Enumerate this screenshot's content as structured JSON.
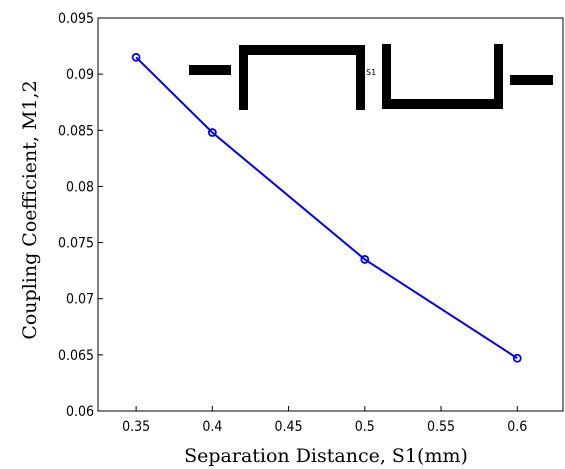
{
  "chart_data": {
    "type": "line",
    "xlabel": "Separation Distance, S1(mm)",
    "ylabel": "Coupling Coefficient, M1,2",
    "xlim": [
      0.325,
      0.63
    ],
    "ylim": [
      0.06,
      0.095
    ],
    "xticks": [
      0.35,
      0.4,
      0.45,
      0.5,
      0.55,
      0.6
    ],
    "yticks": [
      0.06,
      0.065,
      0.07,
      0.075,
      0.08,
      0.085,
      0.09,
      0.095
    ],
    "xtick_labels": [
      "0.35",
      "0.4",
      "0.45",
      "0.5",
      "0.55",
      "0.6"
    ],
    "ytick_labels": [
      "0.06",
      "0.065",
      "0.07",
      "0.075",
      "0.08",
      "0.085",
      "0.09",
      "0.095"
    ],
    "grid": false,
    "series": [
      {
        "x": [
          0.35,
          0.4,
          0.5,
          0.6
        ],
        "y": [
          0.0915,
          0.0848,
          0.0735,
          0.0647
        ],
        "color": "#0000ff",
        "marker": "circle"
      }
    ],
    "inset": {
      "label": "S1"
    }
  },
  "colors": {
    "line": "#0000ff",
    "axis": "#000000",
    "inset": "#000000"
  }
}
